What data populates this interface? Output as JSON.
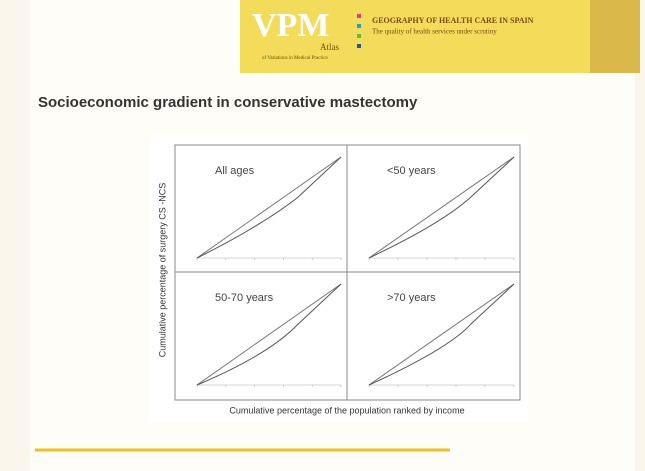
{
  "header": {
    "logo": "VPM",
    "atlas": "Atlas",
    "subtitle_logo": "of Variations in Medical Practice",
    "title": "GEOGRAPHY OF HEALTH CARE IN SPAIN",
    "tagline": "The quality of health services under scrutiny"
  },
  "slide": {
    "title": "Socioeconomic gradient in conservative mastectomy"
  },
  "figure": {
    "y_label": "Cumulative percentage of surgery CS -NCS",
    "x_label": "Cumulative percentage of the population ranked by income",
    "panels": [
      {
        "label": "All ages"
      },
      {
        "label": "<50 years"
      },
      {
        "label": "50-70 years"
      },
      {
        "label": ">70 years"
      }
    ]
  }
}
